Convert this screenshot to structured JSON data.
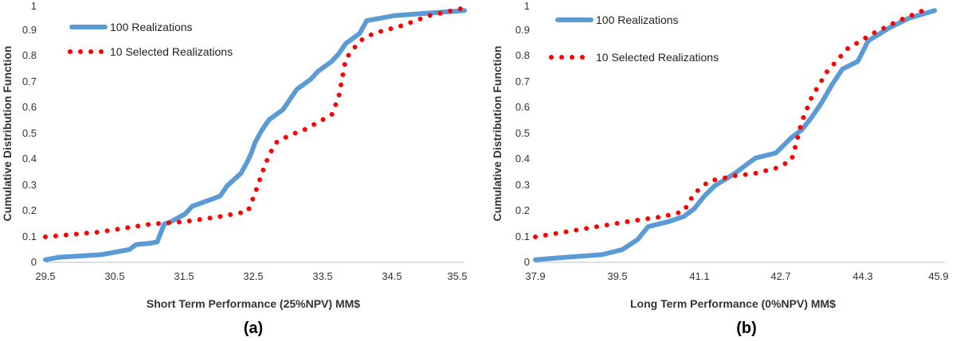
{
  "colors": {
    "series_100": "#5b9bd5",
    "series_10": "#ff0000"
  },
  "chart_data": [
    {
      "type": "line",
      "panel_label": "(a)",
      "xlabel": "Short Term Performance (25%NPV) MM$",
      "ylabel": "Cumulative Distribution Function",
      "xlim": [
        29.5,
        35.5
      ],
      "ylim": [
        0,
        1
      ],
      "x_ticks": [
        "29.5",
        "30.5",
        "31.5",
        "32.5",
        "33.5",
        "34.5",
        "35.5"
      ],
      "y_ticks": [
        "0",
        "0.1",
        "0.2",
        "0.3",
        "0.4",
        "0.5",
        "0.6",
        "0.7",
        "0.8",
        "0.9",
        "1"
      ],
      "legend": [
        "100 Realizations",
        "10 Selected Realizations"
      ],
      "series": [
        {
          "name": "100 Realizations",
          "style": "solid",
          "points": [
            [
              29.5,
              0.01
            ],
            [
              29.7,
              0.02
            ],
            [
              30.0,
              0.025
            ],
            [
              30.3,
              0.03
            ],
            [
              30.5,
              0.04
            ],
            [
              30.7,
              0.05
            ],
            [
              30.8,
              0.07
            ],
            [
              31.0,
              0.075
            ],
            [
              31.1,
              0.08
            ],
            [
              31.2,
              0.15
            ],
            [
              31.3,
              0.16
            ],
            [
              31.5,
              0.19
            ],
            [
              31.6,
              0.22
            ],
            [
              31.8,
              0.24
            ],
            [
              32.0,
              0.26
            ],
            [
              32.1,
              0.3
            ],
            [
              32.3,
              0.35
            ],
            [
              32.4,
              0.4
            ],
            [
              32.45,
              0.43
            ],
            [
              32.5,
              0.47
            ],
            [
              32.6,
              0.52
            ],
            [
              32.7,
              0.56
            ],
            [
              32.9,
              0.6
            ],
            [
              33.0,
              0.64
            ],
            [
              33.1,
              0.68
            ],
            [
              33.2,
              0.7
            ],
            [
              33.3,
              0.72
            ],
            [
              33.4,
              0.75
            ],
            [
              33.5,
              0.77
            ],
            [
              33.6,
              0.79
            ],
            [
              33.7,
              0.82
            ],
            [
              33.8,
              0.86
            ],
            [
              33.9,
              0.88
            ],
            [
              34.0,
              0.9
            ],
            [
              34.1,
              0.95
            ],
            [
              34.3,
              0.96
            ],
            [
              34.5,
              0.97
            ],
            [
              35.0,
              0.98
            ],
            [
              35.5,
              0.99
            ]
          ]
        },
        {
          "name": "10 Selected Realizations",
          "style": "dotted",
          "points": [
            [
              29.5,
              0.1
            ],
            [
              30.3,
              0.12
            ],
            [
              31.0,
              0.15
            ],
            [
              31.5,
              0.16
            ],
            [
              32.0,
              0.18
            ],
            [
              32.4,
              0.2
            ],
            [
              32.5,
              0.27
            ],
            [
              32.6,
              0.35
            ],
            [
              32.7,
              0.42
            ],
            [
              32.8,
              0.47
            ],
            [
              33.0,
              0.5
            ],
            [
              33.2,
              0.52
            ],
            [
              33.4,
              0.55
            ],
            [
              33.6,
              0.58
            ],
            [
              33.7,
              0.65
            ],
            [
              33.8,
              0.8
            ],
            [
              34.0,
              0.87
            ],
            [
              34.2,
              0.9
            ],
            [
              34.6,
              0.93
            ],
            [
              35.0,
              0.97
            ],
            [
              35.5,
              1.0
            ]
          ]
        }
      ]
    },
    {
      "type": "line",
      "panel_label": "(b)",
      "xlabel": "Long Term Performance (0%NPV) MM$",
      "ylabel": "Cumulative Distribution Function",
      "xlim": [
        37.9,
        45.9
      ],
      "ylim": [
        0,
        1
      ],
      "x_ticks": [
        "37.9",
        "39.5",
        "41.1",
        "42.7",
        "44.3",
        "45.9"
      ],
      "y_ticks": [
        "0",
        "0.1",
        "0.2",
        "0.3",
        "0.4",
        "0.5",
        "0.6",
        "0.7",
        "0.8",
        "0.9",
        "1"
      ],
      "legend": [
        "100 Realizations",
        "10 Selected Realizations"
      ],
      "series": [
        {
          "name": "100 Realizations",
          "style": "solid",
          "points": [
            [
              37.9,
              0.01
            ],
            [
              38.5,
              0.02
            ],
            [
              39.2,
              0.03
            ],
            [
              39.6,
              0.05
            ],
            [
              39.9,
              0.09
            ],
            [
              40.1,
              0.14
            ],
            [
              40.5,
              0.16
            ],
            [
              40.8,
              0.18
            ],
            [
              41.0,
              0.21
            ],
            [
              41.2,
              0.26
            ],
            [
              41.4,
              0.3
            ],
            [
              41.8,
              0.35
            ],
            [
              42.0,
              0.38
            ],
            [
              42.2,
              0.41
            ],
            [
              42.6,
              0.43
            ],
            [
              42.9,
              0.49
            ],
            [
              43.1,
              0.52
            ],
            [
              43.3,
              0.57
            ],
            [
              43.5,
              0.63
            ],
            [
              43.7,
              0.7
            ],
            [
              43.9,
              0.76
            ],
            [
              44.2,
              0.79
            ],
            [
              44.4,
              0.87
            ],
            [
              44.8,
              0.92
            ],
            [
              45.2,
              0.96
            ],
            [
              45.7,
              0.99
            ]
          ]
        },
        {
          "name": "10 Selected Realizations",
          "style": "dotted",
          "points": [
            [
              37.9,
              0.1
            ],
            [
              38.8,
              0.13
            ],
            [
              39.7,
              0.16
            ],
            [
              40.4,
              0.18
            ],
            [
              40.8,
              0.2
            ],
            [
              41.0,
              0.27
            ],
            [
              41.3,
              0.32
            ],
            [
              41.8,
              0.34
            ],
            [
              42.2,
              0.35
            ],
            [
              42.6,
              0.37
            ],
            [
              42.9,
              0.4
            ],
            [
              43.0,
              0.47
            ],
            [
              43.1,
              0.55
            ],
            [
              43.3,
              0.65
            ],
            [
              43.6,
              0.75
            ],
            [
              44.0,
              0.84
            ],
            [
              44.5,
              0.9
            ],
            [
              45.0,
              0.95
            ],
            [
              45.6,
              1.0
            ]
          ]
        }
      ]
    }
  ]
}
